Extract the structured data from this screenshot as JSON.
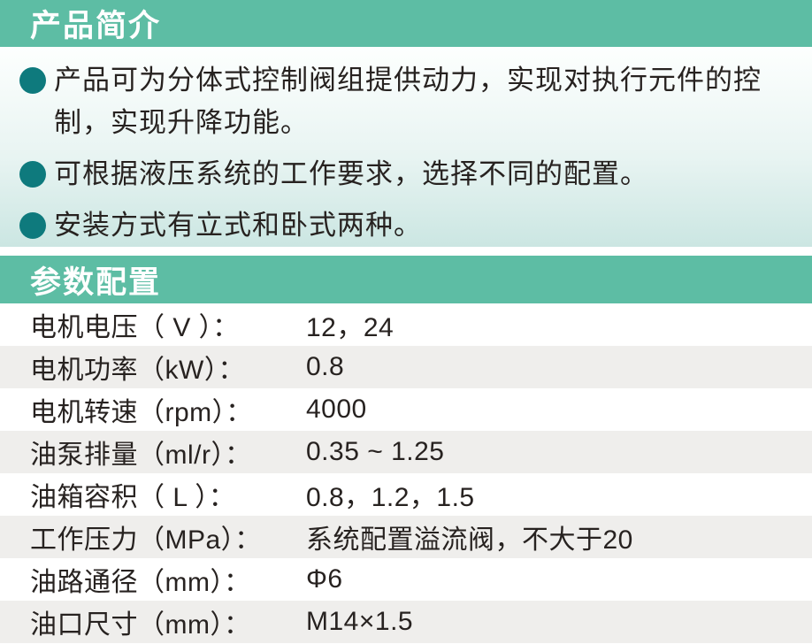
{
  "colors": {
    "header_bg": "#5dbda4",
    "header_text": "#ffffff",
    "bullet_dot": "#0e7a7d",
    "row_alt_bg": "#efeeec",
    "body_text": "#272220"
  },
  "intro": {
    "title": "产品简介",
    "bullets": [
      "产品可为分体式控制阀组提供动力，实现对执行元件的控\n制，实现升降功能。",
      "可根据液压系统的工作要求，选择不同的配置。",
      "安装方式有立式和卧式两种。"
    ]
  },
  "params": {
    "title": "参数配置",
    "rows": [
      {
        "label": "电机电压（ V ）：",
        "value": "12，24"
      },
      {
        "label": "电机功率（kW）：",
        "value": "0.8"
      },
      {
        "label": "电机转速（rpm）：",
        "value": "4000"
      },
      {
        "label": "油泵排量（ml/r）：",
        "value": "0.35 ~ 1.25"
      },
      {
        "label": "油箱容积（ L ）：",
        "value": "0.8，1.2，1.5"
      },
      {
        "label": "工作压力（MPa）：",
        "value": "系统配置溢流阀，不大于20"
      },
      {
        "label": "油路通径（mm）：",
        "value": "Φ6"
      },
      {
        "label": "油口尺寸（mm）：",
        "value": "M14×1.5"
      }
    ]
  }
}
